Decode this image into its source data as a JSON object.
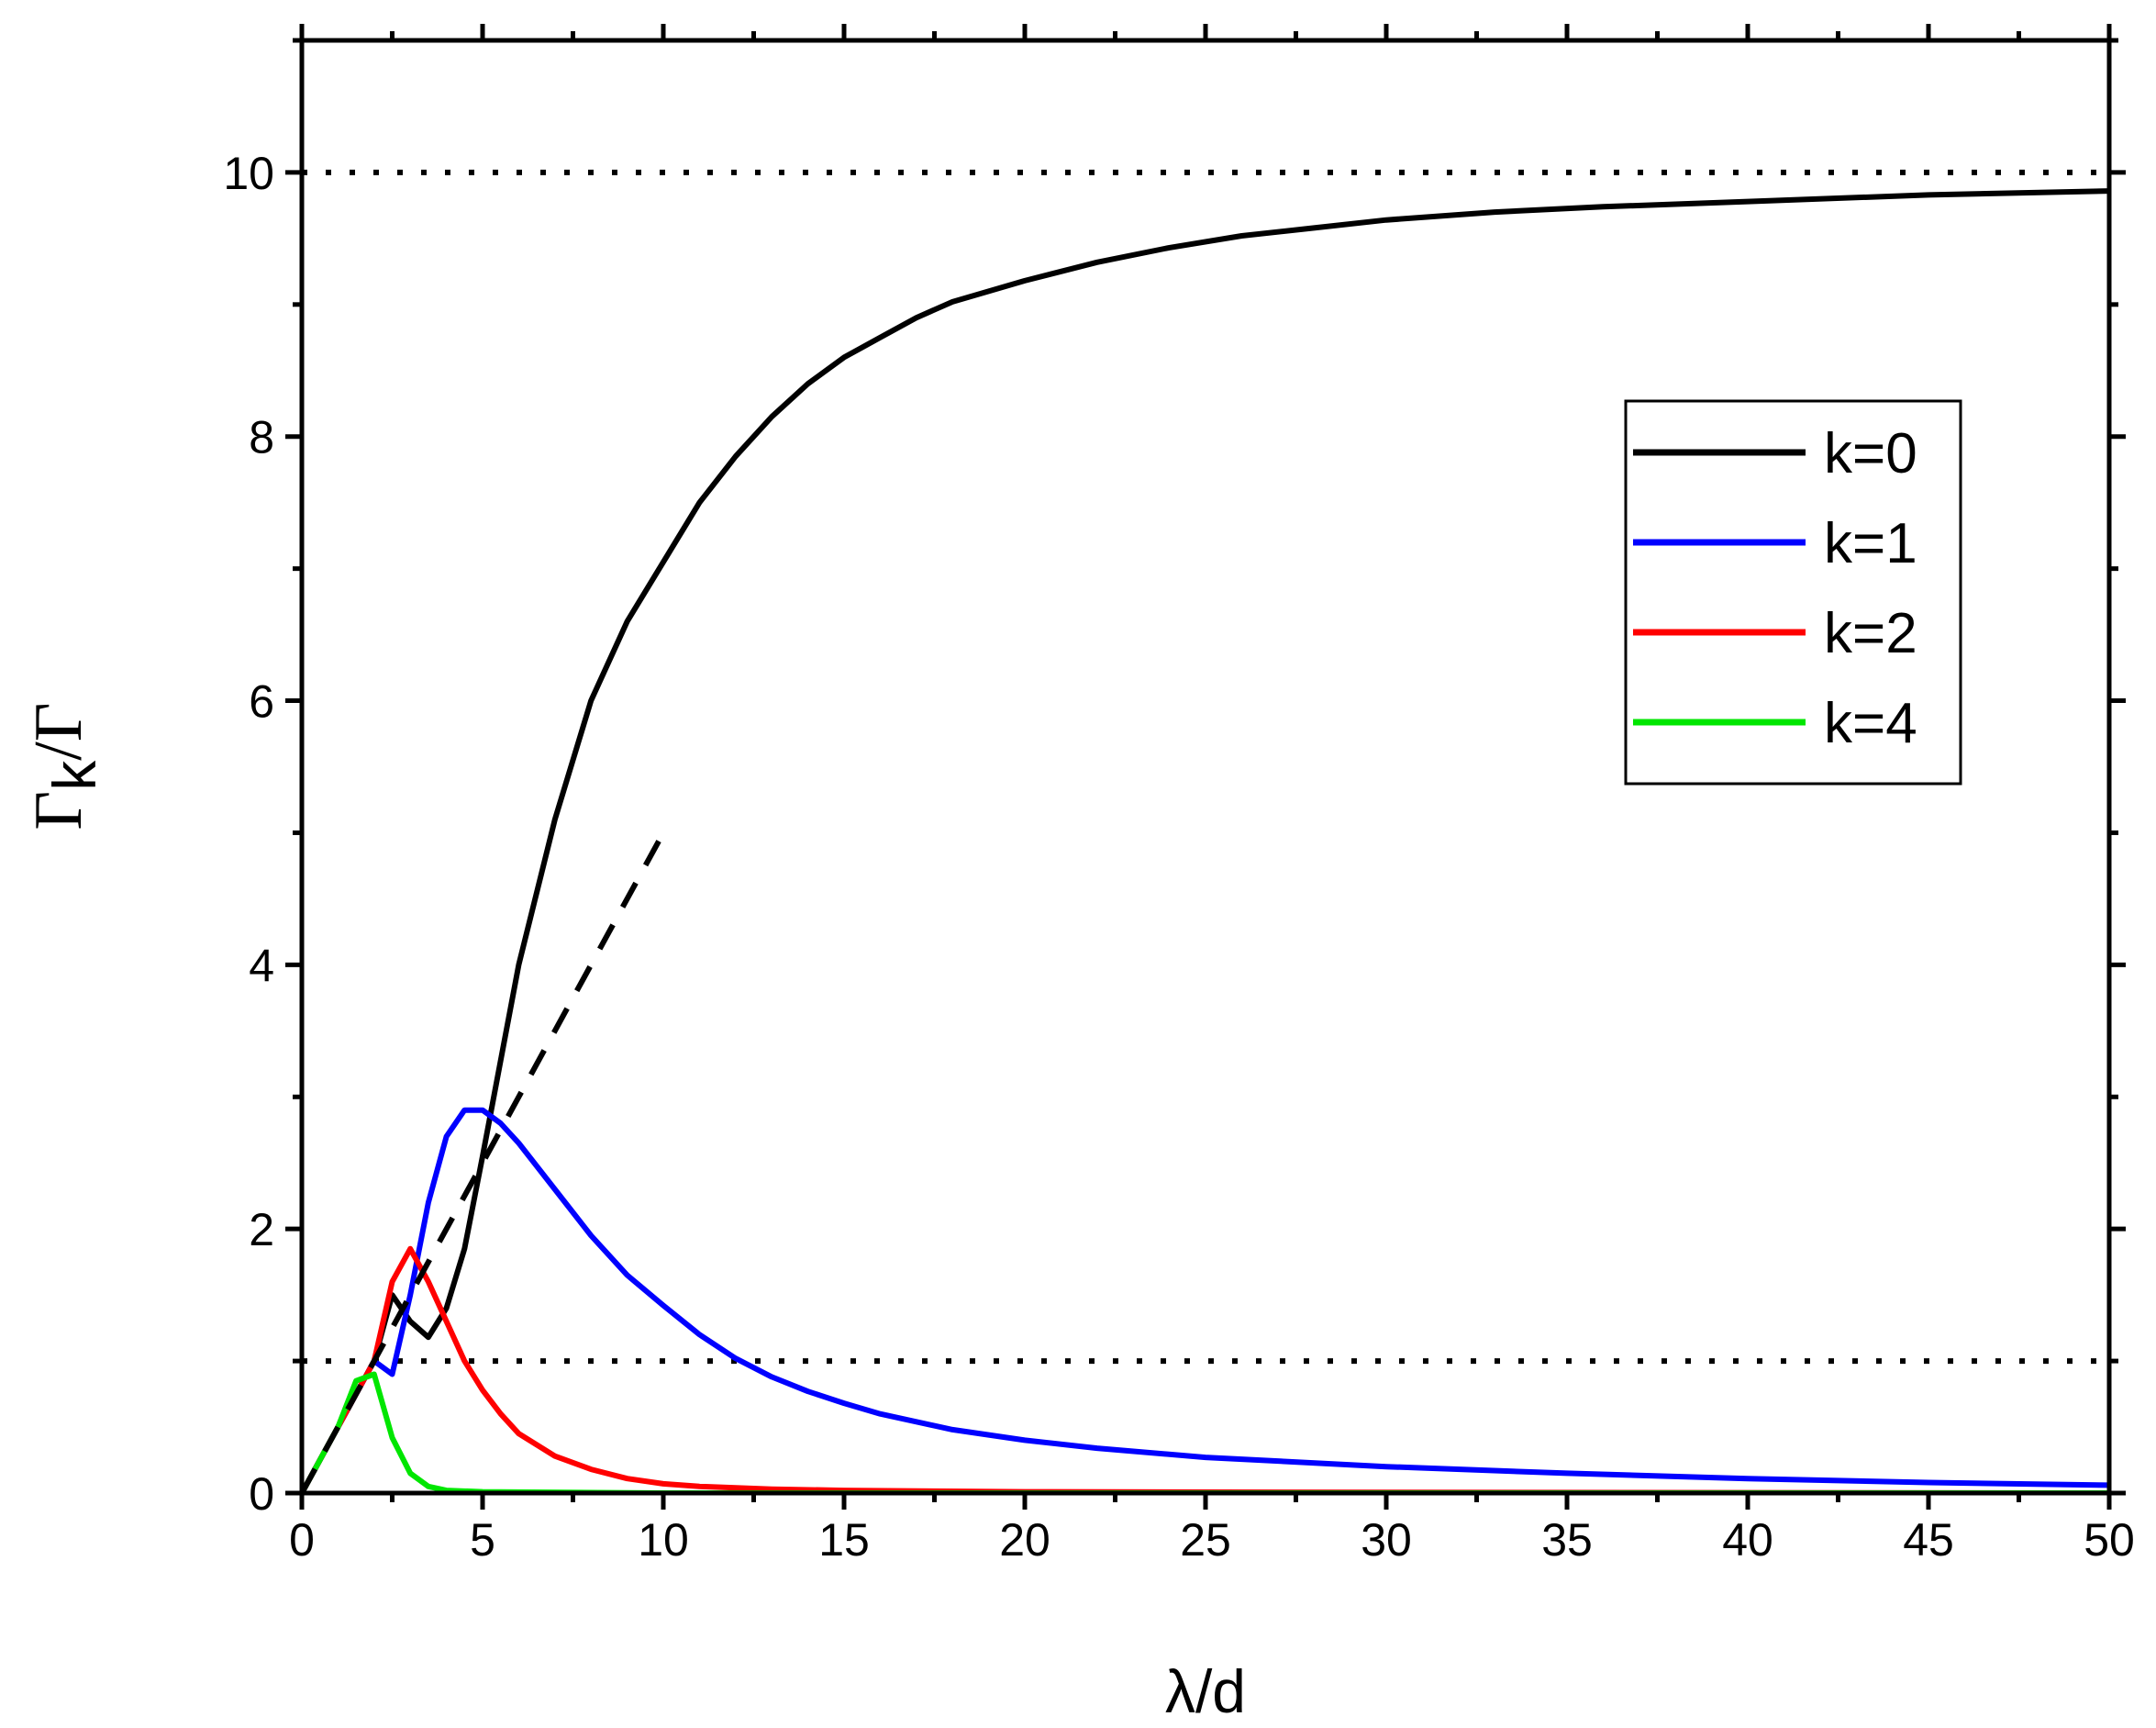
{
  "chart_data": {
    "type": "line",
    "xlabel": "λ/d",
    "ylabel": {
      "main": "Γ",
      "sub": "k",
      "tail": "/Γ"
    },
    "xlim": [
      0,
      50
    ],
    "ylim": [
      0,
      11
    ],
    "xticks": [
      0,
      5,
      10,
      15,
      20,
      25,
      30,
      35,
      40,
      45,
      50
    ],
    "yticks": [
      0,
      2,
      4,
      6,
      8,
      10
    ],
    "grid": false,
    "legend_position": "right, upper-middle",
    "series": [
      {
        "name": "k=0",
        "color": "#000000",
        "style": "solid",
        "x": [
          0,
          0.5,
          1,
          1.5,
          2,
          2.5,
          3,
          3.5,
          4,
          4.5,
          5,
          6,
          7,
          8,
          9,
          10,
          11,
          12,
          13,
          14,
          15,
          16,
          17,
          18,
          19,
          20,
          22,
          24,
          26,
          28,
          30,
          33,
          36,
          40,
          45,
          50
        ],
        "y": [
          0,
          0.25,
          0.5,
          0.75,
          1.0,
          1.5,
          1.3,
          1.18,
          1.4,
          1.85,
          2.55,
          4.0,
          5.1,
          6.0,
          6.6,
          7.05,
          7.5,
          7.85,
          8.15,
          8.4,
          8.6,
          8.75,
          8.9,
          9.02,
          9.1,
          9.18,
          9.32,
          9.43,
          9.52,
          9.58,
          9.64,
          9.7,
          9.74,
          9.78,
          9.83,
          9.86
        ]
      },
      {
        "name": "k=1",
        "color": "#0000ff",
        "style": "solid",
        "x": [
          0,
          0.5,
          1,
          1.5,
          2,
          2.5,
          3,
          3.5,
          4,
          4.5,
          5,
          5.5,
          6,
          7,
          8,
          9,
          10,
          11,
          12,
          13,
          14,
          15,
          16,
          18,
          20,
          22,
          25,
          30,
          35,
          40,
          45,
          50
        ],
        "y": [
          0,
          0.25,
          0.5,
          0.75,
          1.0,
          0.9,
          1.5,
          2.2,
          2.7,
          2.9,
          2.9,
          2.8,
          2.65,
          2.3,
          1.95,
          1.65,
          1.42,
          1.2,
          1.02,
          0.88,
          0.77,
          0.68,
          0.6,
          0.48,
          0.4,
          0.34,
          0.27,
          0.2,
          0.15,
          0.11,
          0.08,
          0.06
        ]
      },
      {
        "name": "k=2",
        "color": "#ff0000",
        "style": "solid",
        "x": [
          0,
          0.5,
          1,
          1.5,
          2,
          2.5,
          3,
          3.5,
          4,
          4.5,
          5,
          5.5,
          6,
          7,
          8,
          9,
          10,
          11,
          12,
          13,
          15,
          20,
          30,
          50
        ],
        "y": [
          0,
          0.25,
          0.5,
          0.75,
          1.0,
          1.6,
          1.85,
          1.6,
          1.3,
          1.0,
          0.78,
          0.6,
          0.45,
          0.28,
          0.18,
          0.11,
          0.07,
          0.05,
          0.04,
          0.03,
          0.02,
          0.01,
          0.005,
          0.0
        ]
      },
      {
        "name": "k=4",
        "color": "#00e600",
        "style": "solid",
        "x": [
          0,
          0.5,
          1,
          1.5,
          2,
          2.5,
          3,
          3.5,
          4,
          5,
          10,
          20,
          50
        ],
        "y": [
          0,
          0.25,
          0.5,
          0.85,
          0.9,
          0.42,
          0.15,
          0.05,
          0.02,
          0.01,
          0.0,
          0.0,
          0.0
        ]
      },
      {
        "name": "",
        "color": "#000000",
        "style": "dashed",
        "x": [
          0,
          10
        ],
        "y": [
          0,
          5
        ]
      }
    ],
    "reference_lines": [
      {
        "y": 10,
        "style": "dotted",
        "color": "#000000"
      },
      {
        "y": 1,
        "style": "dotted",
        "color": "#000000"
      }
    ]
  }
}
